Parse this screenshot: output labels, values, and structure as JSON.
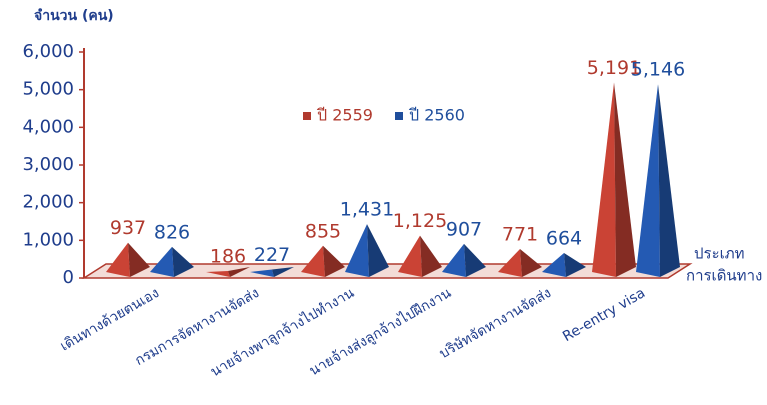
{
  "chart_data": {
    "type": "bar",
    "y_label": "จำนวน (คน)",
    "x_label": [
      "ประเภท",
      "การเดินทาง"
    ],
    "categories": [
      "เดินทางด้วยตนเอง",
      "กรมการจัดหางานจัดส่ง",
      "นายจ้างพาลูกจ้างไปทำงาน",
      "นายจ้างส่งลูกจ้างไปฝึกงาน",
      "บริษัทจัดหางานจัดส่ง",
      "Re-entry visa"
    ],
    "series": [
      {
        "name": "ปี 2559",
        "color": "#b03a2e",
        "values": [
          937,
          186,
          855,
          1125,
          771,
          5191
        ],
        "value_labels": [
          "937",
          "186",
          "855",
          "1,125",
          "771",
          "5,191"
        ]
      },
      {
        "name": "ปี 2560",
        "color": "#1f4e9c",
        "values": [
          826,
          227,
          1431,
          907,
          664,
          5146
        ],
        "value_labels": [
          "826",
          "227",
          "1,431",
          "907",
          "664",
          "5,146"
        ]
      }
    ],
    "ylim": [
      0,
      6000
    ],
    "yticks": [
      0,
      {
        "value": 1000,
        "label": "1,000"
      },
      {
        "value": 2000,
        "label": "2,000"
      },
      {
        "value": 3000,
        "label": "3,000"
      },
      {
        "value": 4000,
        "label": "4,000"
      },
      {
        "value": 5000,
        "label": "5,000"
      },
      {
        "value": 6000,
        "label": "6,000"
      }
    ]
  }
}
